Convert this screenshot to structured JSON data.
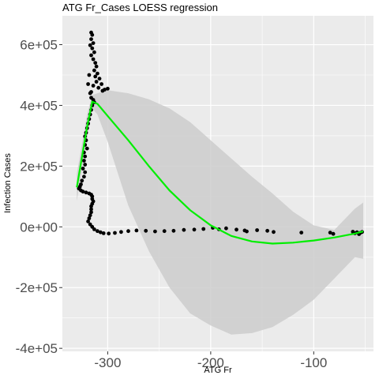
{
  "chart_data": {
    "type": "scatter",
    "title": "ATG Fr_Cases LOESS regression",
    "xlabel": "ATG Fr",
    "ylabel": "Infection Cases",
    "xlim": [
      -344,
      -42
    ],
    "ylim": [
      -410000,
      695000
    ],
    "x_ticks": [
      -300,
      -200,
      -100
    ],
    "x_tick_labels": [
      "-300",
      "-200",
      "-100"
    ],
    "y_ticks": [
      -400000,
      -200000,
      0,
      200000,
      400000,
      600000
    ],
    "y_tick_labels": [
      "-4e+05",
      "-2e+05",
      "0e+00",
      "2e+05",
      "4e+05",
      "6e+05"
    ],
    "grid": true,
    "colors": {
      "panel": "#ebebeb",
      "grid_major": "#ffffff",
      "points": "#000000",
      "fit_line": "#00ee00",
      "ribbon": "#cccccc"
    },
    "points": [
      {
        "x": -316,
        "y": 640000
      },
      {
        "x": -315,
        "y": 632000
      },
      {
        "x": -316,
        "y": 618000
      },
      {
        "x": -314,
        "y": 605000
      },
      {
        "x": -317,
        "y": 598000
      },
      {
        "x": -315,
        "y": 588000
      },
      {
        "x": -313,
        "y": 575000
      },
      {
        "x": -316,
        "y": 565000
      },
      {
        "x": -314,
        "y": 552000
      },
      {
        "x": -312,
        "y": 540000
      },
      {
        "x": -311,
        "y": 528000
      },
      {
        "x": -313,
        "y": 515000
      },
      {
        "x": -310,
        "y": 505000
      },
      {
        "x": -312,
        "y": 495000
      },
      {
        "x": -308,
        "y": 488000
      },
      {
        "x": -311,
        "y": 478000
      },
      {
        "x": -306,
        "y": 470000
      },
      {
        "x": -314,
        "y": 465000
      },
      {
        "x": -309,
        "y": 458000
      },
      {
        "x": -300,
        "y": 455000
      },
      {
        "x": -303,
        "y": 452000
      },
      {
        "x": -305,
        "y": 448000
      },
      {
        "x": -316,
        "y": 444000
      },
      {
        "x": -318,
        "y": 500000
      },
      {
        "x": -319,
        "y": 470000
      },
      {
        "x": -317,
        "y": 440000
      },
      {
        "x": -316,
        "y": 425000
      },
      {
        "x": -314,
        "y": 418000
      },
      {
        "x": -313,
        "y": 410000
      },
      {
        "x": -315,
        "y": 400000
      },
      {
        "x": -316,
        "y": 385000
      },
      {
        "x": -317,
        "y": 370000
      },
      {
        "x": -318,
        "y": 355000
      },
      {
        "x": -319,
        "y": 340000
      },
      {
        "x": -320,
        "y": 325000
      },
      {
        "x": -321,
        "y": 310000
      },
      {
        "x": -322,
        "y": 298000
      },
      {
        "x": -321,
        "y": 285000
      },
      {
        "x": -322,
        "y": 270000
      },
      {
        "x": -320,
        "y": 258000
      },
      {
        "x": -323,
        "y": 245000
      },
      {
        "x": -322,
        "y": 232000
      },
      {
        "x": -323,
        "y": 218000
      },
      {
        "x": -322,
        "y": 205000
      },
      {
        "x": -324,
        "y": 192000
      },
      {
        "x": -322,
        "y": 180000
      },
      {
        "x": -323,
        "y": 165000
      },
      {
        "x": -325,
        "y": 152000
      },
      {
        "x": -326,
        "y": 140000
      },
      {
        "x": -327,
        "y": 132000
      },
      {
        "x": -328,
        "y": 126000
      },
      {
        "x": -326,
        "y": 120000
      },
      {
        "x": -324,
        "y": 116000
      },
      {
        "x": -321,
        "y": 113000
      },
      {
        "x": -318,
        "y": 110000
      },
      {
        "x": -316,
        "y": 106000
      },
      {
        "x": -315,
        "y": 100000
      },
      {
        "x": -315,
        "y": 92000
      },
      {
        "x": -314,
        "y": 84000
      },
      {
        "x": -315,
        "y": 76000
      },
      {
        "x": -316,
        "y": 68000
      },
      {
        "x": -316,
        "y": 58000
      },
      {
        "x": -316,
        "y": 48000
      },
      {
        "x": -317,
        "y": 38000
      },
      {
        "x": -318,
        "y": 28000
      },
      {
        "x": -319,
        "y": 18000
      },
      {
        "x": -317,
        "y": 8000
      },
      {
        "x": -315,
        "y": 0
      },
      {
        "x": -313,
        "y": -8000
      },
      {
        "x": -310,
        "y": -14000
      },
      {
        "x": -307,
        "y": -18000
      },
      {
        "x": -304,
        "y": -21000
      },
      {
        "x": -299,
        "y": -22000
      },
      {
        "x": -293,
        "y": -20000
      },
      {
        "x": -287,
        "y": -17000
      },
      {
        "x": -280,
        "y": -14000
      },
      {
        "x": -272,
        "y": -12000
      },
      {
        "x": -263,
        "y": -13000
      },
      {
        "x": -254,
        "y": -15000
      },
      {
        "x": -245,
        "y": -14000
      },
      {
        "x": -236,
        "y": -13000
      },
      {
        "x": -226,
        "y": -10000
      },
      {
        "x": -216,
        "y": -9000
      },
      {
        "x": -207,
        "y": -7000
      },
      {
        "x": -198,
        "y": -3000
      },
      {
        "x": -192,
        "y": -8000
      },
      {
        "x": -185,
        "y": -5000
      },
      {
        "x": -175,
        "y": -9000
      },
      {
        "x": -167,
        "y": -12000
      },
      {
        "x": -165,
        "y": -15000
      },
      {
        "x": -155,
        "y": -11000
      },
      {
        "x": -145,
        "y": -13000
      },
      {
        "x": -139,
        "y": -17000
      },
      {
        "x": -112,
        "y": -19000
      },
      {
        "x": -84,
        "y": -19000
      },
      {
        "x": -81,
        "y": -23000
      },
      {
        "x": -62,
        "y": -16000
      },
      {
        "x": -60,
        "y": -21000
      },
      {
        "x": -58,
        "y": -18000
      },
      {
        "x": -56,
        "y": -24000
      },
      {
        "x": -55,
        "y": -20000
      },
      {
        "x": -53,
        "y": -17000
      }
    ],
    "loess_fit": {
      "x": [
        -330,
        -320,
        -315,
        -310,
        -300,
        -280,
        -260,
        -240,
        -220,
        -200,
        -180,
        -160,
        -140,
        -120,
        -100,
        -80,
        -60,
        -52
      ],
      "y": [
        130000,
        330000,
        412000,
        405000,
        365000,
        285000,
        200000,
        120000,
        55000,
        5000,
        -30000,
        -48000,
        -55000,
        -52000,
        -45000,
        -35000,
        -22000,
        -15000
      ],
      "ymin": [
        85000,
        290000,
        390000,
        370000,
        280000,
        70000,
        -80000,
        -200000,
        -285000,
        -325000,
        -355000,
        -350000,
        -330000,
        -290000,
        -240000,
        -170000,
        -100000,
        -105000
      ],
      "ymax": [
        175000,
        370000,
        434000,
        440000,
        450000,
        440000,
        420000,
        390000,
        345000,
        285000,
        225000,
        165000,
        110000,
        50000,
        5000,
        -10000,
        60000,
        80000
      ]
    }
  }
}
